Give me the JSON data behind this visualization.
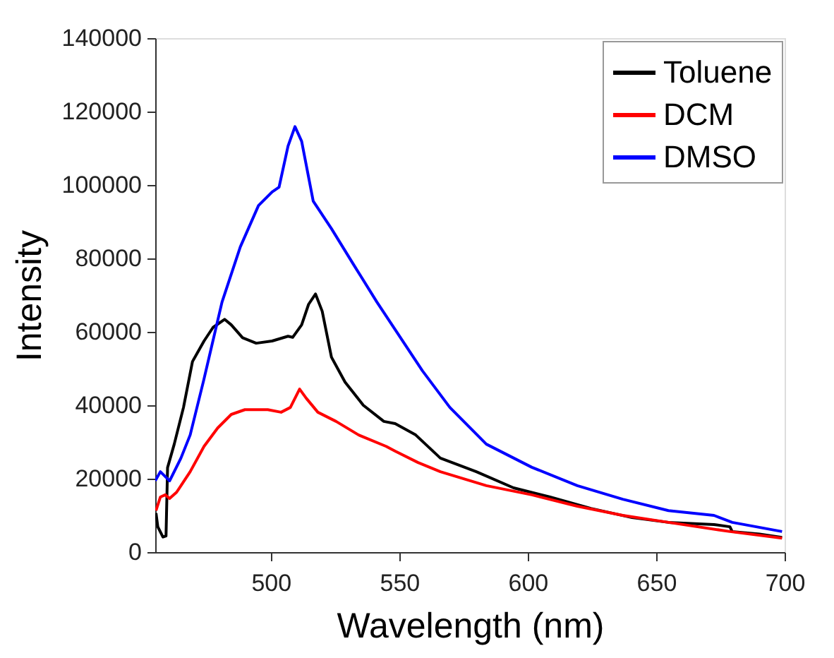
{
  "chart_data": {
    "type": "line",
    "xlabel": "Wavelength (nm)",
    "ylabel": "Intensity",
    "xlim": [
      455,
      700
    ],
    "xticks": [
      500,
      550,
      600,
      650,
      700
    ],
    "ylim": [
      0,
      140000
    ],
    "yticks": [
      0,
      20000,
      40000,
      60000,
      80000,
      100000,
      120000,
      140000
    ],
    "grid": false,
    "legend": "top right",
    "marker": "none",
    "line_style": "solid",
    "series": [
      {
        "name": "Toluene",
        "color": "#000000",
        "x": [
          455.3,
          456,
          458,
          459.2,
          459.8,
          462.4,
          466,
          469.5,
          474,
          477.5,
          482,
          484.6,
          489,
          494.3,
          500.5,
          506.7,
          508.5,
          512,
          514.7,
          517.4,
          520,
          523.6,
          528.9,
          536,
          544,
          548.4,
          556.4,
          566,
          580,
          594.5,
          608.7,
          624.6,
          640.6,
          654.8,
          672.5,
          678.7,
          679.6,
          690.2,
          699
        ],
        "values": [
          10600,
          6900,
          4100,
          4400,
          23000,
          29400,
          39400,
          51900,
          57500,
          61200,
          63400,
          61900,
          58400,
          56900,
          57500,
          58800,
          58500,
          61900,
          67500,
          70300,
          65600,
          53100,
          46300,
          40000,
          35600,
          35000,
          31900,
          25600,
          21900,
          17500,
          15000,
          11900,
          9400,
          8100,
          7500,
          6900,
          5600,
          4900,
          4000
        ]
      },
      {
        "name": "DCM",
        "color": "#ff0000",
        "x": [
          455.3,
          457,
          458.9,
          460.6,
          463.3,
          468.6,
          474,
          479.3,
          484.6,
          489.9,
          498.8,
          504,
          507.6,
          511.2,
          513.8,
          518.3,
          525.4,
          534.2,
          544.9,
          548.4,
          557.3,
          566,
          583.9,
          601.6,
          619.3,
          637,
          654.8,
          678.7,
          699
        ],
        "values": [
          11300,
          15000,
          15600,
          14600,
          16300,
          21900,
          28800,
          33800,
          37500,
          38800,
          38800,
          38100,
          39400,
          44400,
          41900,
          38100,
          35600,
          31900,
          28800,
          27500,
          24400,
          21900,
          18100,
          15600,
          12500,
          10000,
          8100,
          5600,
          3800
        ]
      },
      {
        "name": "DMSO",
        "color": "#0000ff",
        "x": [
          455,
          457,
          460.6,
          465,
          468.6,
          473.9,
          481,
          488.1,
          495.2,
          500.5,
          503.2,
          506.7,
          509.4,
          512,
          516.5,
          523.6,
          532.4,
          541.3,
          548.4,
          559,
          569.7,
          583.9,
          601.6,
          619.3,
          637,
          654.8,
          672.5,
          679.6,
          699
        ],
        "values": [
          19400,
          21900,
          19400,
          25600,
          31900,
          46900,
          68100,
          83100,
          94400,
          98100,
          99400,
          110600,
          115900,
          111900,
          95600,
          88100,
          78100,
          68100,
          60600,
          49400,
          39400,
          29400,
          23100,
          18100,
          14400,
          11300,
          10000,
          8100,
          5600
        ]
      }
    ]
  }
}
